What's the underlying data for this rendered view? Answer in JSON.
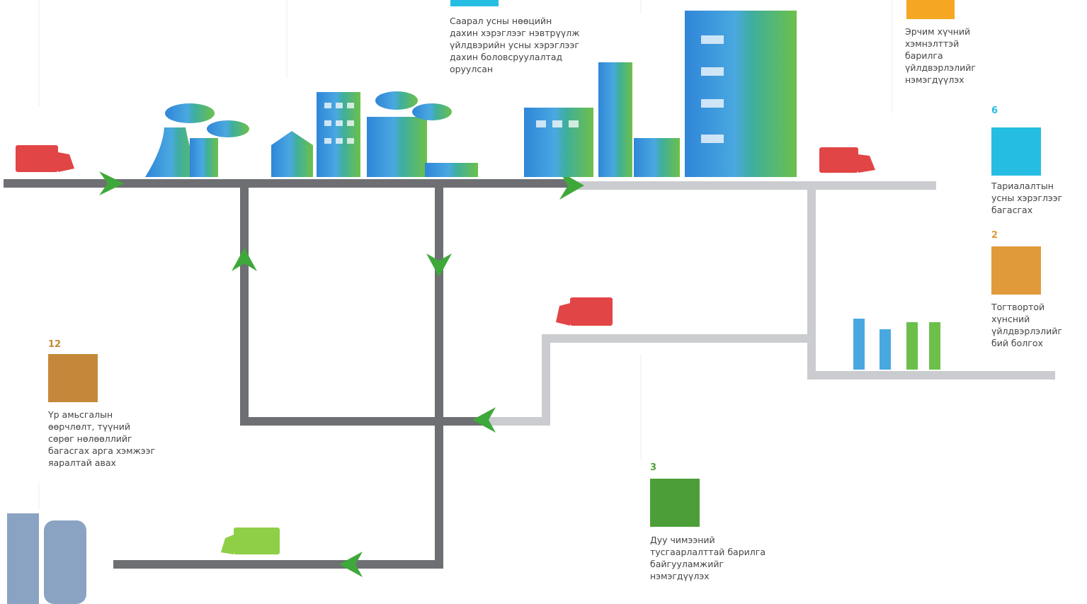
{
  "captions": [
    {
      "lines": [
        "Саарал усны нөөцийн",
        "дахин хэрэглээг нэвтрүүлж",
        "үйлдвэрийн усны хэрэглээг",
        "дахин боловсруулалтад",
        "оруулсан"
      ]
    },
    {
      "lines": [
        "Эрчим хүчний",
        "хэмнэлттэй",
        "барилга",
        "үйлдвэрлэлийг",
        "нэмэгдүүлэх"
      ]
    },
    {
      "goal": "6",
      "lines": [
        "Тариалалтын",
        "усны хэрэглээг",
        "багасгах"
      ]
    },
    {
      "goal": "2",
      "lines": [
        "Тогтвортой",
        "хүнсний",
        "үйлдвэрлэлийг",
        "бий болгох"
      ]
    },
    {
      "goal": "12",
      "lines": [
        "Үр амьсгалын",
        "өөрчлөлт, түүний",
        "сөрөг нөлөөллийг",
        "багасгах арга хэмжээг",
        "яаралтай авах"
      ]
    },
    {
      "goal": "3",
      "lines": [
        "Дуу чимээний",
        "тусгаарлалттай барилга",
        "байгууламжийг",
        "нэмэгдүүлэх"
      ]
    }
  ]
}
